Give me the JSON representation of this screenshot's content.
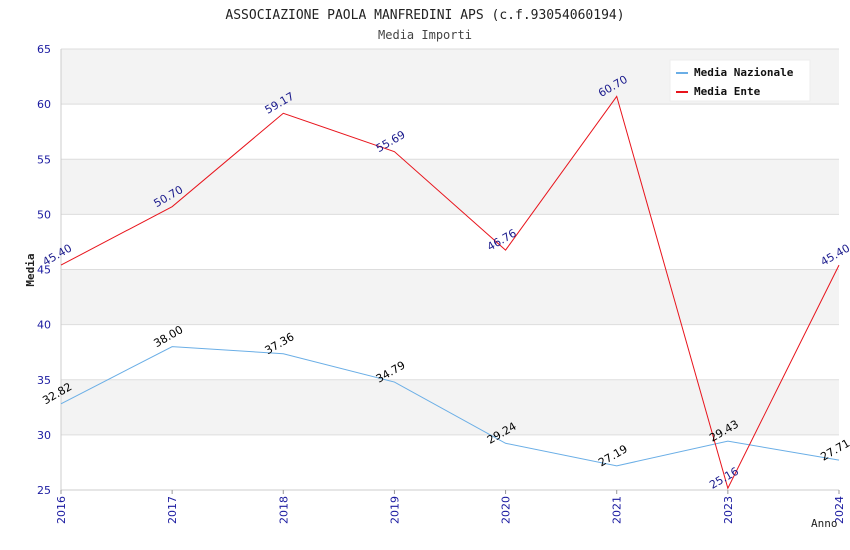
{
  "chart_data": {
    "type": "line",
    "title": "ASSOCIAZIONE PAOLA MANFREDINI APS (c.f.93054060194)",
    "subtitle": "Media Importi",
    "xlabel": "Anno",
    "ylabel": "Media",
    "ylim": [
      25,
      65
    ],
    "yticks": [
      "25",
      "30",
      "35",
      "40",
      "45",
      "50",
      "55",
      "60",
      "65"
    ],
    "categories": [
      "2016",
      "2017",
      "2018",
      "2019",
      "2020",
      "2021",
      "2023",
      "2024"
    ],
    "grid": true,
    "legend_position": "top-right",
    "series": [
      {
        "name": "Media Nazionale",
        "color": "#6aaee6",
        "label_color": "#000000",
        "values": [
          32.82,
          38.0,
          37.36,
          34.79,
          29.24,
          27.19,
          29.43,
          27.71
        ],
        "labels": [
          "32.82",
          "38.00",
          "37.36",
          "34.79",
          "29.24",
          "27.19",
          "29.43",
          "27.71"
        ]
      },
      {
        "name": "Media Ente",
        "color": "#e8141c",
        "label_color": "#1a1a8c",
        "values": [
          45.4,
          50.7,
          59.17,
          55.69,
          46.76,
          60.7,
          25.16,
          45.4
        ],
        "labels": [
          "45.40",
          "50.70",
          "59.17",
          "55.69",
          "46.76",
          "60.70",
          "25.16",
          "45.40"
        ]
      }
    ]
  }
}
